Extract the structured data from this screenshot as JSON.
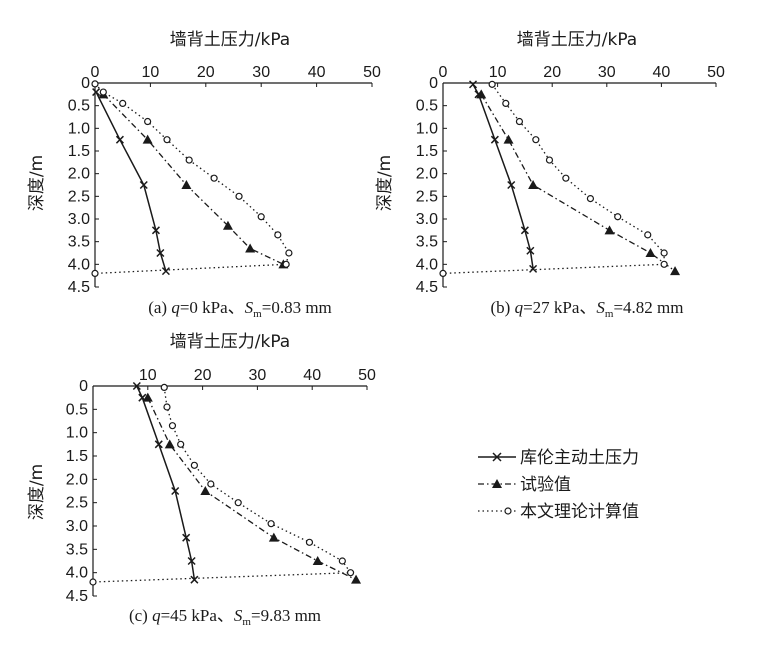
{
  "chart_data": [
    {
      "type": "line",
      "title": "",
      "caption": {
        "prefix": "(a) ",
        "q": "q",
        "q_rest": "=0 kPa、",
        "s": "S",
        "s_sub": "m",
        "s_rest": "=0.83 mm"
      },
      "xlabel": "墙背土压力/kPa",
      "ylabel": "深度/m",
      "xlim": [
        0,
        50
      ],
      "ylim": [
        4.5,
        0
      ],
      "xticks": [
        "0",
        "10",
        "20",
        "30",
        "40",
        "50"
      ],
      "yticks": [
        "0",
        "0.5",
        "1.0",
        "1.5",
        "2.0",
        "2.5",
        "3.0",
        "3.5",
        "4.0",
        "4.5"
      ],
      "series": [
        {
          "name": "库伦主动土压力",
          "points": [
            [
              0.2,
              0.2
            ],
            [
              4.5,
              1.25
            ],
            [
              8.8,
              2.25
            ],
            [
              11.0,
              3.25
            ],
            [
              11.8,
              3.75
            ],
            [
              12.8,
              4.15
            ]
          ]
        },
        {
          "name": "试验值",
          "points": [
            [
              1.5,
              0.25
            ],
            [
              9.5,
              1.25
            ],
            [
              16.5,
              2.25
            ],
            [
              24.0,
              3.15
            ],
            [
              28.0,
              3.65
            ],
            [
              34.0,
              4.0
            ]
          ]
        },
        {
          "name": "本文理论计算值",
          "points": [
            [
              0.0,
              0.02
            ],
            [
              1.5,
              0.2
            ],
            [
              5.0,
              0.45
            ],
            [
              9.5,
              0.85
            ],
            [
              13.0,
              1.25
            ],
            [
              17.0,
              1.7
            ],
            [
              21.5,
              2.1
            ],
            [
              26.0,
              2.5
            ],
            [
              30.0,
              2.95
            ],
            [
              33.0,
              3.35
            ],
            [
              35.0,
              3.75
            ],
            [
              34.5,
              4.0
            ],
            [
              0.0,
              4.2
            ]
          ]
        }
      ]
    },
    {
      "type": "line",
      "title": "",
      "caption": {
        "prefix": "(b) ",
        "q": "q",
        "q_rest": "=27 kPa、",
        "s": "S",
        "s_sub": "m",
        "s_rest": "=4.82 mm"
      },
      "xlabel": "墙背土压力/kPa",
      "ylabel": "深度/m",
      "xlim": [
        0,
        50
      ],
      "ylim": [
        4.5,
        0
      ],
      "xticks": [
        "0",
        "10",
        "20",
        "30",
        "40",
        "50"
      ],
      "yticks": [
        "0",
        "0.5",
        "1.0",
        "1.5",
        "2.0",
        "2.5",
        "3.0",
        "3.5",
        "4.0",
        "4.5"
      ],
      "series": [
        {
          "name": "库伦主动土压力",
          "points": [
            [
              5.5,
              0.03
            ],
            [
              6.5,
              0.25
            ],
            [
              9.5,
              1.25
            ],
            [
              12.5,
              2.25
            ],
            [
              15.0,
              3.25
            ],
            [
              16.0,
              3.7
            ],
            [
              16.5,
              4.1
            ]
          ]
        },
        {
          "name": "试验值",
          "points": [
            [
              7.0,
              0.25
            ],
            [
              12.0,
              1.25
            ],
            [
              16.5,
              2.25
            ],
            [
              30.5,
              3.25
            ],
            [
              38.0,
              3.75
            ],
            [
              42.5,
              4.15
            ]
          ]
        },
        {
          "name": "本文理论计算值",
          "points": [
            [
              9.0,
              0.03
            ],
            [
              11.5,
              0.45
            ],
            [
              14.0,
              0.85
            ],
            [
              17.0,
              1.25
            ],
            [
              19.5,
              1.7
            ],
            [
              22.5,
              2.1
            ],
            [
              27.0,
              2.55
            ],
            [
              32.0,
              2.95
            ],
            [
              37.5,
              3.35
            ],
            [
              40.5,
              3.75
            ],
            [
              40.5,
              4.0
            ],
            [
              0.0,
              4.2
            ]
          ]
        }
      ]
    },
    {
      "type": "line",
      "title": "",
      "caption": {
        "prefix": "(c) ",
        "q": "q",
        "q_rest": "=45 kPa、",
        "s": "S",
        "s_sub": "m",
        "s_rest": "=9.83 mm"
      },
      "xlabel": "墙背土压力/kPa",
      "ylabel": "深度/m",
      "xlim": [
        0,
        50
      ],
      "ylim": [
        4.5,
        0
      ],
      "xticks": [
        "10",
        "20",
        "30",
        "40",
        "50"
      ],
      "yticks": [
        "0",
        "0.5",
        "1.0",
        "1.5",
        "2.0",
        "2.5",
        "3.0",
        "3.5",
        "4.0",
        "4.5"
      ],
      "series": [
        {
          "name": "库伦主动土压力",
          "points": [
            [
              8.0,
              0.0
            ],
            [
              9.0,
              0.25
            ],
            [
              12.0,
              1.25
            ],
            [
              15.0,
              2.25
            ],
            [
              17.0,
              3.25
            ],
            [
              18.0,
              3.75
            ],
            [
              18.5,
              4.15
            ]
          ]
        },
        {
          "name": "试验值",
          "points": [
            [
              10.0,
              0.25
            ],
            [
              14.0,
              1.25
            ],
            [
              20.5,
              2.25
            ],
            [
              33.0,
              3.25
            ],
            [
              41.0,
              3.75
            ],
            [
              48.0,
              4.15
            ]
          ]
        },
        {
          "name": "本文理论计算值",
          "points": [
            [
              13.0,
              0.03
            ],
            [
              13.5,
              0.45
            ],
            [
              14.5,
              0.85
            ],
            [
              16.0,
              1.25
            ],
            [
              18.5,
              1.7
            ],
            [
              21.5,
              2.1
            ],
            [
              26.5,
              2.5
            ],
            [
              32.5,
              2.95
            ],
            [
              39.5,
              3.35
            ],
            [
              45.5,
              3.75
            ],
            [
              47.0,
              4.0
            ],
            [
              0.0,
              4.2
            ]
          ]
        }
      ]
    }
  ],
  "legend": {
    "items": [
      "库伦主动土压力",
      "试验值",
      "本文理论计算值"
    ]
  }
}
